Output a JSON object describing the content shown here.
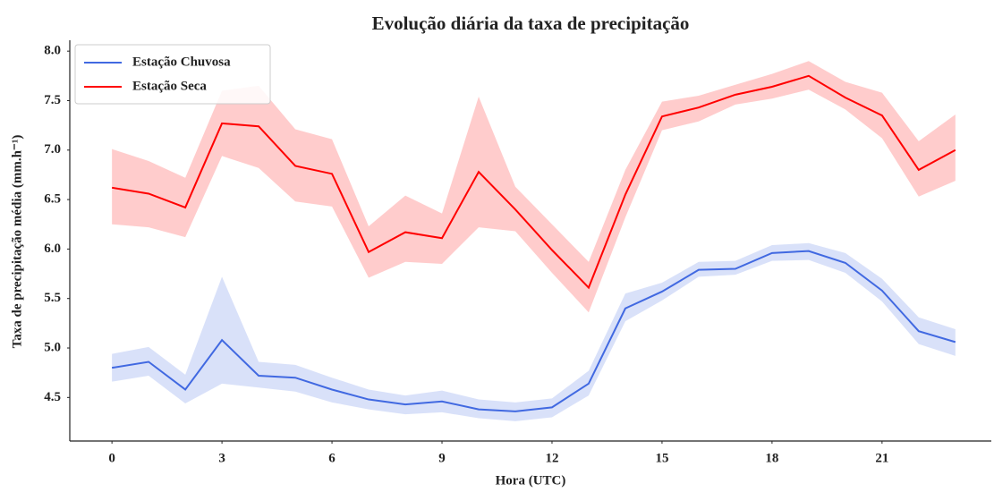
{
  "chart_data": {
    "type": "line",
    "title": "Evolução diária da taxa de precipitação",
    "x_label": "Hora (UTC)",
    "y_label": "Taxa de precipitação média (mm.h⁻¹)",
    "x": [
      0,
      1,
      2,
      3,
      4,
      5,
      6,
      7,
      8,
      9,
      10,
      11,
      12,
      13,
      14,
      15,
      16,
      17,
      18,
      19,
      20,
      21,
      22,
      23
    ],
    "xlim": [
      -1.15,
      23.98
    ],
    "xticks": [
      0,
      3,
      6,
      9,
      12,
      15,
      18,
      21
    ],
    "ylim": [
      4.06,
      8.11
    ],
    "yticks": [
      4.5,
      {
        "value": 5.0,
        "label": "5.0"
      },
      5.5,
      {
        "value": 6.0,
        "label": "6.0"
      },
      6.5,
      {
        "value": 7.0,
        "label": "7.0"
      },
      7.5,
      {
        "value": 8.0,
        "label": "8.0"
      }
    ],
    "legend": "upper left",
    "series": [
      {
        "name": "Estação Chuvosa",
        "color": "#4169e1",
        "values": [
          4.8,
          4.86,
          4.58,
          5.08,
          4.72,
          4.7,
          4.58,
          4.48,
          4.43,
          4.46,
          4.38,
          4.36,
          4.4,
          4.64,
          5.4,
          5.57,
          5.79,
          5.8,
          5.96,
          5.98,
          5.86,
          5.58,
          5.17,
          5.06
        ],
        "lower": [
          4.66,
          4.72,
          4.44,
          4.64,
          4.6,
          4.56,
          4.45,
          4.38,
          4.33,
          4.35,
          4.29,
          4.26,
          4.3,
          4.52,
          5.27,
          5.48,
          5.72,
          5.74,
          5.88,
          5.89,
          5.76,
          5.47,
          5.04,
          4.92
        ],
        "upper": [
          4.94,
          5.01,
          4.73,
          5.72,
          4.86,
          4.83,
          4.7,
          4.58,
          4.52,
          4.57,
          4.48,
          4.45,
          4.49,
          4.77,
          5.55,
          5.66,
          5.87,
          5.88,
          6.04,
          6.06,
          5.96,
          5.7,
          5.31,
          5.19
        ]
      },
      {
        "name": "Estação Seca",
        "color": "#ff0000",
        "values": [
          6.62,
          6.56,
          6.42,
          7.27,
          7.24,
          6.84,
          6.76,
          5.97,
          6.17,
          6.11,
          6.78,
          6.4,
          5.99,
          5.61,
          6.55,
          7.34,
          7.43,
          7.56,
          7.64,
          7.75,
          7.53,
          7.35,
          6.8,
          7.0
        ],
        "lower": [
          6.25,
          6.22,
          6.12,
          6.94,
          6.82,
          6.48,
          6.43,
          5.71,
          5.87,
          5.85,
          6.22,
          6.18,
          5.76,
          5.36,
          6.32,
          7.2,
          7.29,
          7.46,
          7.52,
          7.61,
          7.41,
          7.12,
          6.53,
          6.69
        ],
        "upper": [
          7.01,
          6.89,
          6.72,
          7.6,
          7.65,
          7.21,
          7.11,
          6.23,
          6.54,
          6.36,
          7.54,
          6.63,
          6.25,
          5.87,
          6.8,
          7.49,
          7.55,
          7.66,
          7.77,
          7.9,
          7.69,
          7.58,
          7.09,
          7.36
        ]
      }
    ]
  }
}
